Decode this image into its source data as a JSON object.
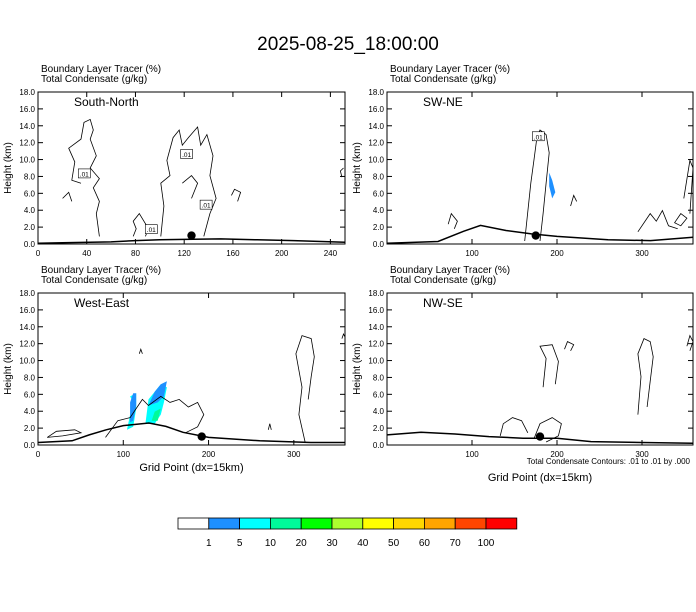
{
  "figure": {
    "title": "2025-08-25_18:00:00",
    "footnote": "Total Condensate Contours: .01 to .01 by .000"
  },
  "colorbar": {
    "colors": [
      "#ffffff",
      "#1e90ff",
      "#00ffff",
      "#00fa9a",
      "#00ff00",
      "#adff2f",
      "#ffff00",
      "#ffd700",
      "#ffa500",
      "#ff4500",
      "#ff0000"
    ],
    "labels": [
      "1",
      "5",
      "10",
      "20",
      "30",
      "40",
      "50",
      "60",
      "70",
      "100"
    ]
  },
  "chart_data": [
    {
      "type": "contour",
      "panel": "South-North",
      "title_line1": "Boundary Layer Tracer   (%)",
      "title_line2": "Total Condensate   (g/kg)",
      "ylabel": "Height (km)",
      "xlabel": "",
      "xlim": [
        0,
        252
      ],
      "xticks": [
        0,
        40,
        80,
        120,
        160,
        200,
        240
      ],
      "ylim": [
        0,
        18
      ],
      "yticks": [
        "0.0",
        "2.0",
        "4.0",
        "6.0",
        "8.0",
        "10.0",
        "12.0",
        "14.0",
        "16.0",
        "18.0"
      ],
      "contour_labels": [
        {
          "text": ".01",
          "x": 122,
          "y": 10.6
        },
        {
          "text": ".01",
          "x": 38,
          "y": 8.3
        },
        {
          "text": ".01",
          "x": 138,
          "y": 4.6
        },
        {
          "text": ".01",
          "x": 93,
          "y": 1.7
        }
      ],
      "marker": {
        "x": 126,
        "y": 1.0
      },
      "terrain": [
        [
          0,
          0.1
        ],
        [
          20,
          0.15
        ],
        [
          60,
          0.25
        ],
        [
          80,
          0.4
        ],
        [
          100,
          0.5
        ],
        [
          120,
          0.55
        ],
        [
          150,
          0.6
        ],
        [
          180,
          0.5
        ],
        [
          210,
          0.4
        ],
        [
          252,
          0.2
        ]
      ]
    },
    {
      "type": "contour",
      "panel": "SW-NE",
      "title_line1": "Boundary Layer Tracer   (%)",
      "title_line2": "Total Condensate   (g/kg)",
      "ylabel": "Height (km)",
      "xlabel": "",
      "xlim": [
        0,
        360
      ],
      "xticks": [
        100,
        200,
        300
      ],
      "ylim": [
        0,
        18
      ],
      "yticks": [
        "0.0",
        "2.0",
        "4.0",
        "6.0",
        "8.0",
        "10.0",
        "12.0",
        "14.0",
        "16.0",
        "18.0"
      ],
      "contour_labels": [
        {
          "text": ".01",
          "x": 178,
          "y": 12.7
        }
      ],
      "marker": {
        "x": 175,
        "y": 1.0
      },
      "terrain": [
        [
          0,
          0.1
        ],
        [
          60,
          0.3
        ],
        [
          90,
          1.5
        ],
        [
          110,
          2.2
        ],
        [
          140,
          1.6
        ],
        [
          170,
          1.2
        ],
        [
          200,
          0.9
        ],
        [
          260,
          0.5
        ],
        [
          310,
          0.4
        ],
        [
          360,
          0.8
        ]
      ]
    },
    {
      "type": "contour",
      "panel": "West-East",
      "title_line1": "Boundary Layer Tracer   (%)",
      "title_line2": "Total Condensate   (g/kg)",
      "ylabel": "Height (km)",
      "xlabel": "Grid Point (dx=15km)",
      "xlim": [
        0,
        360
      ],
      "xticks": [
        0,
        100,
        200,
        300
      ],
      "ylim": [
        0,
        18
      ],
      "yticks": [
        "0.0",
        "2.0",
        "4.0",
        "6.0",
        "8.0",
        "10.0",
        "12.0",
        "14.0",
        "16.0",
        "18.0"
      ],
      "contour_labels": [],
      "marker": {
        "x": 192,
        "y": 1.0
      },
      "terrain": [
        [
          0,
          0.3
        ],
        [
          40,
          0.5
        ],
        [
          60,
          1.2
        ],
        [
          80,
          1.8
        ],
        [
          100,
          2.3
        ],
        [
          130,
          2.6
        ],
        [
          150,
          2.2
        ],
        [
          170,
          1.5
        ],
        [
          200,
          0.9
        ],
        [
          260,
          0.5
        ],
        [
          320,
          0.3
        ],
        [
          360,
          0.3
        ]
      ]
    },
    {
      "type": "contour",
      "panel": "NW-SE",
      "title_line1": "Boundary Layer Tracer   (%)",
      "title_line2": "Total Condensate   (g/kg)",
      "ylabel": "Height (km)",
      "xlabel": "Grid Point (dx=15km)",
      "xlim": [
        0,
        360
      ],
      "xticks": [
        100,
        200,
        300
      ],
      "ylim": [
        0,
        18
      ],
      "yticks": [
        "0.0",
        "2.0",
        "4.0",
        "6.0",
        "8.0",
        "10.0",
        "12.0",
        "14.0",
        "16.0",
        "18.0"
      ],
      "contour_labels": [],
      "marker": {
        "x": 180,
        "y": 1.0
      },
      "terrain": [
        [
          0,
          1.2
        ],
        [
          40,
          1.5
        ],
        [
          80,
          1.3
        ],
        [
          120,
          1.0
        ],
        [
          160,
          0.8
        ],
        [
          200,
          0.8
        ],
        [
          240,
          0.4
        ],
        [
          300,
          0.3
        ],
        [
          360,
          0.2
        ]
      ]
    }
  ]
}
